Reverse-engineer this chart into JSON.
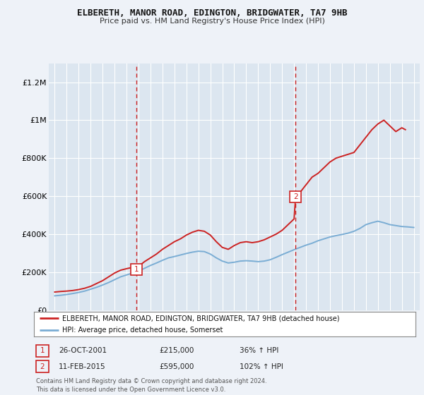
{
  "title": "ELBERETH, MANOR ROAD, EDINGTON, BRIDGWATER, TA7 9HB",
  "subtitle": "Price paid vs. HM Land Registry's House Price Index (HPI)",
  "bg_color": "#eef2f8",
  "plot_bg_color": "#dce6f0",
  "grid_color": "#ffffff",
  "red_color": "#cc2222",
  "blue_color": "#7aadd4",
  "ylim": [
    0,
    1300000
  ],
  "xlim": [
    1994.5,
    2025.5
  ],
  "yticks": [
    0,
    200000,
    400000,
    600000,
    800000,
    1000000,
    1200000
  ],
  "ytick_labels": [
    "£0",
    "£200K",
    "£400K",
    "£600K",
    "£800K",
    "£1M",
    "£1.2M"
  ],
  "xticks": [
    1995,
    1996,
    1997,
    1998,
    1999,
    2000,
    2001,
    2002,
    2003,
    2004,
    2005,
    2006,
    2007,
    2008,
    2009,
    2010,
    2011,
    2012,
    2013,
    2014,
    2015,
    2016,
    2017,
    2018,
    2019,
    2020,
    2021,
    2022,
    2023,
    2024,
    2025
  ],
  "sale1_x": 2001.82,
  "sale1_y": 215000,
  "sale1_label": "1",
  "sale2_x": 2015.12,
  "sale2_y": 595000,
  "sale2_label": "2",
  "legend_line1": "ELBERETH, MANOR ROAD, EDINGTON, BRIDGWATER, TA7 9HB (detached house)",
  "legend_line2": "HPI: Average price, detached house, Somerset",
  "table_row1": [
    "1",
    "26-OCT-2001",
    "£215,000",
    "36% ↑ HPI"
  ],
  "table_row2": [
    "2",
    "11-FEB-2015",
    "£595,000",
    "102% ↑ HPI"
  ],
  "footer": "Contains HM Land Registry data © Crown copyright and database right 2024.\nThis data is licensed under the Open Government Licence v3.0.",
  "red_x": [
    1995,
    1995.5,
    1996,
    1996.5,
    1997,
    1997.5,
    1998,
    1998.5,
    1999,
    1999.5,
    2000,
    2000.5,
    2001,
    2001.5,
    2001.82,
    2002,
    2002.5,
    2003,
    2003.5,
    2004,
    2004.5,
    2005,
    2005.5,
    2006,
    2006.5,
    2007,
    2007.5,
    2008,
    2008.5,
    2009,
    2009.5,
    2010,
    2010.5,
    2011,
    2011.5,
    2012,
    2012.5,
    2013,
    2013.5,
    2014,
    2014.5,
    2015,
    2015.12,
    2015.5,
    2016,
    2016.5,
    2017,
    2017.5,
    2018,
    2018.5,
    2019,
    2019.5,
    2020,
    2020.5,
    2021,
    2021.5,
    2022,
    2022.5,
    2023,
    2023.5,
    2024,
    2024.3
  ],
  "red_y": [
    95000,
    98000,
    100000,
    103000,
    108000,
    115000,
    125000,
    140000,
    155000,
    175000,
    195000,
    210000,
    218000,
    225000,
    215000,
    230000,
    255000,
    275000,
    295000,
    320000,
    340000,
    360000,
    375000,
    395000,
    410000,
    420000,
    415000,
    395000,
    360000,
    330000,
    320000,
    340000,
    355000,
    360000,
    355000,
    360000,
    370000,
    385000,
    400000,
    420000,
    450000,
    480000,
    595000,
    620000,
    660000,
    700000,
    720000,
    750000,
    780000,
    800000,
    810000,
    820000,
    830000,
    870000,
    910000,
    950000,
    980000,
    1000000,
    970000,
    940000,
    960000,
    950000
  ],
  "blue_x": [
    1995,
    1995.5,
    1996,
    1996.5,
    1997,
    1997.5,
    1998,
    1998.5,
    1999,
    1999.5,
    2000,
    2000.5,
    2001,
    2001.5,
    2002,
    2002.5,
    2003,
    2003.5,
    2004,
    2004.5,
    2005,
    2005.5,
    2006,
    2006.5,
    2007,
    2007.5,
    2008,
    2008.5,
    2009,
    2009.5,
    2010,
    2010.5,
    2011,
    2011.5,
    2012,
    2012.5,
    2013,
    2013.5,
    2014,
    2014.5,
    2015,
    2015.5,
    2016,
    2016.5,
    2017,
    2017.5,
    2018,
    2018.5,
    2019,
    2019.5,
    2020,
    2020.5,
    2021,
    2021.5,
    2022,
    2022.5,
    2023,
    2023.5,
    2024,
    2024.5,
    2025
  ],
  "blue_y": [
    75000,
    78000,
    82000,
    87000,
    93000,
    100000,
    110000,
    120000,
    132000,
    145000,
    160000,
    175000,
    185000,
    195000,
    205000,
    220000,
    235000,
    248000,
    262000,
    275000,
    282000,
    290000,
    298000,
    305000,
    310000,
    308000,
    295000,
    275000,
    258000,
    248000,
    252000,
    258000,
    260000,
    258000,
    255000,
    258000,
    265000,
    278000,
    292000,
    305000,
    318000,
    330000,
    342000,
    352000,
    365000,
    375000,
    385000,
    392000,
    398000,
    405000,
    415000,
    430000,
    450000,
    460000,
    468000,
    460000,
    450000,
    445000,
    440000,
    438000,
    435000
  ]
}
